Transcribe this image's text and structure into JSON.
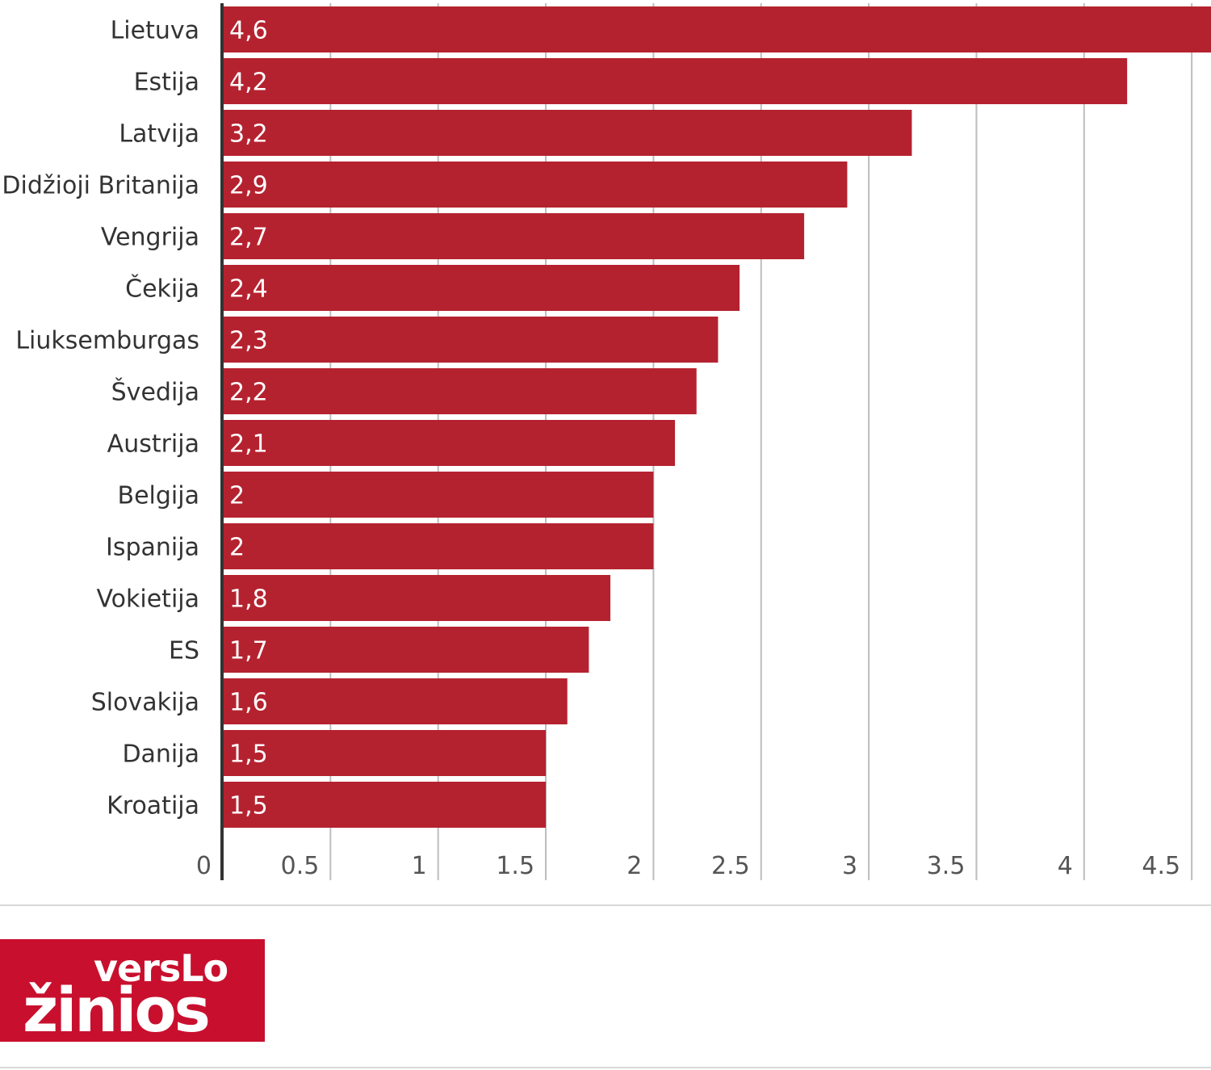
{
  "chart_data": {
    "type": "bar",
    "orientation": "horizontal",
    "categories": [
      "Lietuva",
      "Estija",
      "Latvija",
      "Didžioji Britanija",
      "Vengrija",
      "Čekija",
      "Liuksemburgas",
      "Švedija",
      "Austrija",
      "Belgija",
      "Ispanija",
      "Vokietija",
      "ES",
      "Slovakija",
      "Danija",
      "Kroatija"
    ],
    "values": [
      4.6,
      4.2,
      3.2,
      2.9,
      2.7,
      2.4,
      2.3,
      2.2,
      2.1,
      2.0,
      2.0,
      1.8,
      1.7,
      1.6,
      1.5,
      1.5
    ],
    "value_labels": [
      "4,6",
      "4,2",
      "3,2",
      "2,9",
      "2,7",
      "2,4",
      "2,3",
      "2,2",
      "2,1",
      "2",
      "2",
      "1,8",
      "1,7",
      "1,6",
      "1,5",
      "1,5"
    ],
    "xticks": [
      0,
      0.5,
      1,
      1.5,
      2,
      2.5,
      3,
      3.5,
      4,
      4.5
    ],
    "xtick_labels": [
      "0",
      "0.5",
      "1",
      "1.5",
      "2",
      "2.5",
      "3",
      "3.5",
      "4",
      "4.5"
    ],
    "xlim": [
      0,
      4.6
    ],
    "grid": true,
    "title": "",
    "xlabel": "",
    "ylabel": "",
    "colors": {
      "bar": "#b5222f",
      "grid": "#bdbdbd",
      "axis": "#333333"
    }
  },
  "logo": {
    "line1": "versLo",
    "line2": "žinios",
    "background": "#c8102e"
  }
}
